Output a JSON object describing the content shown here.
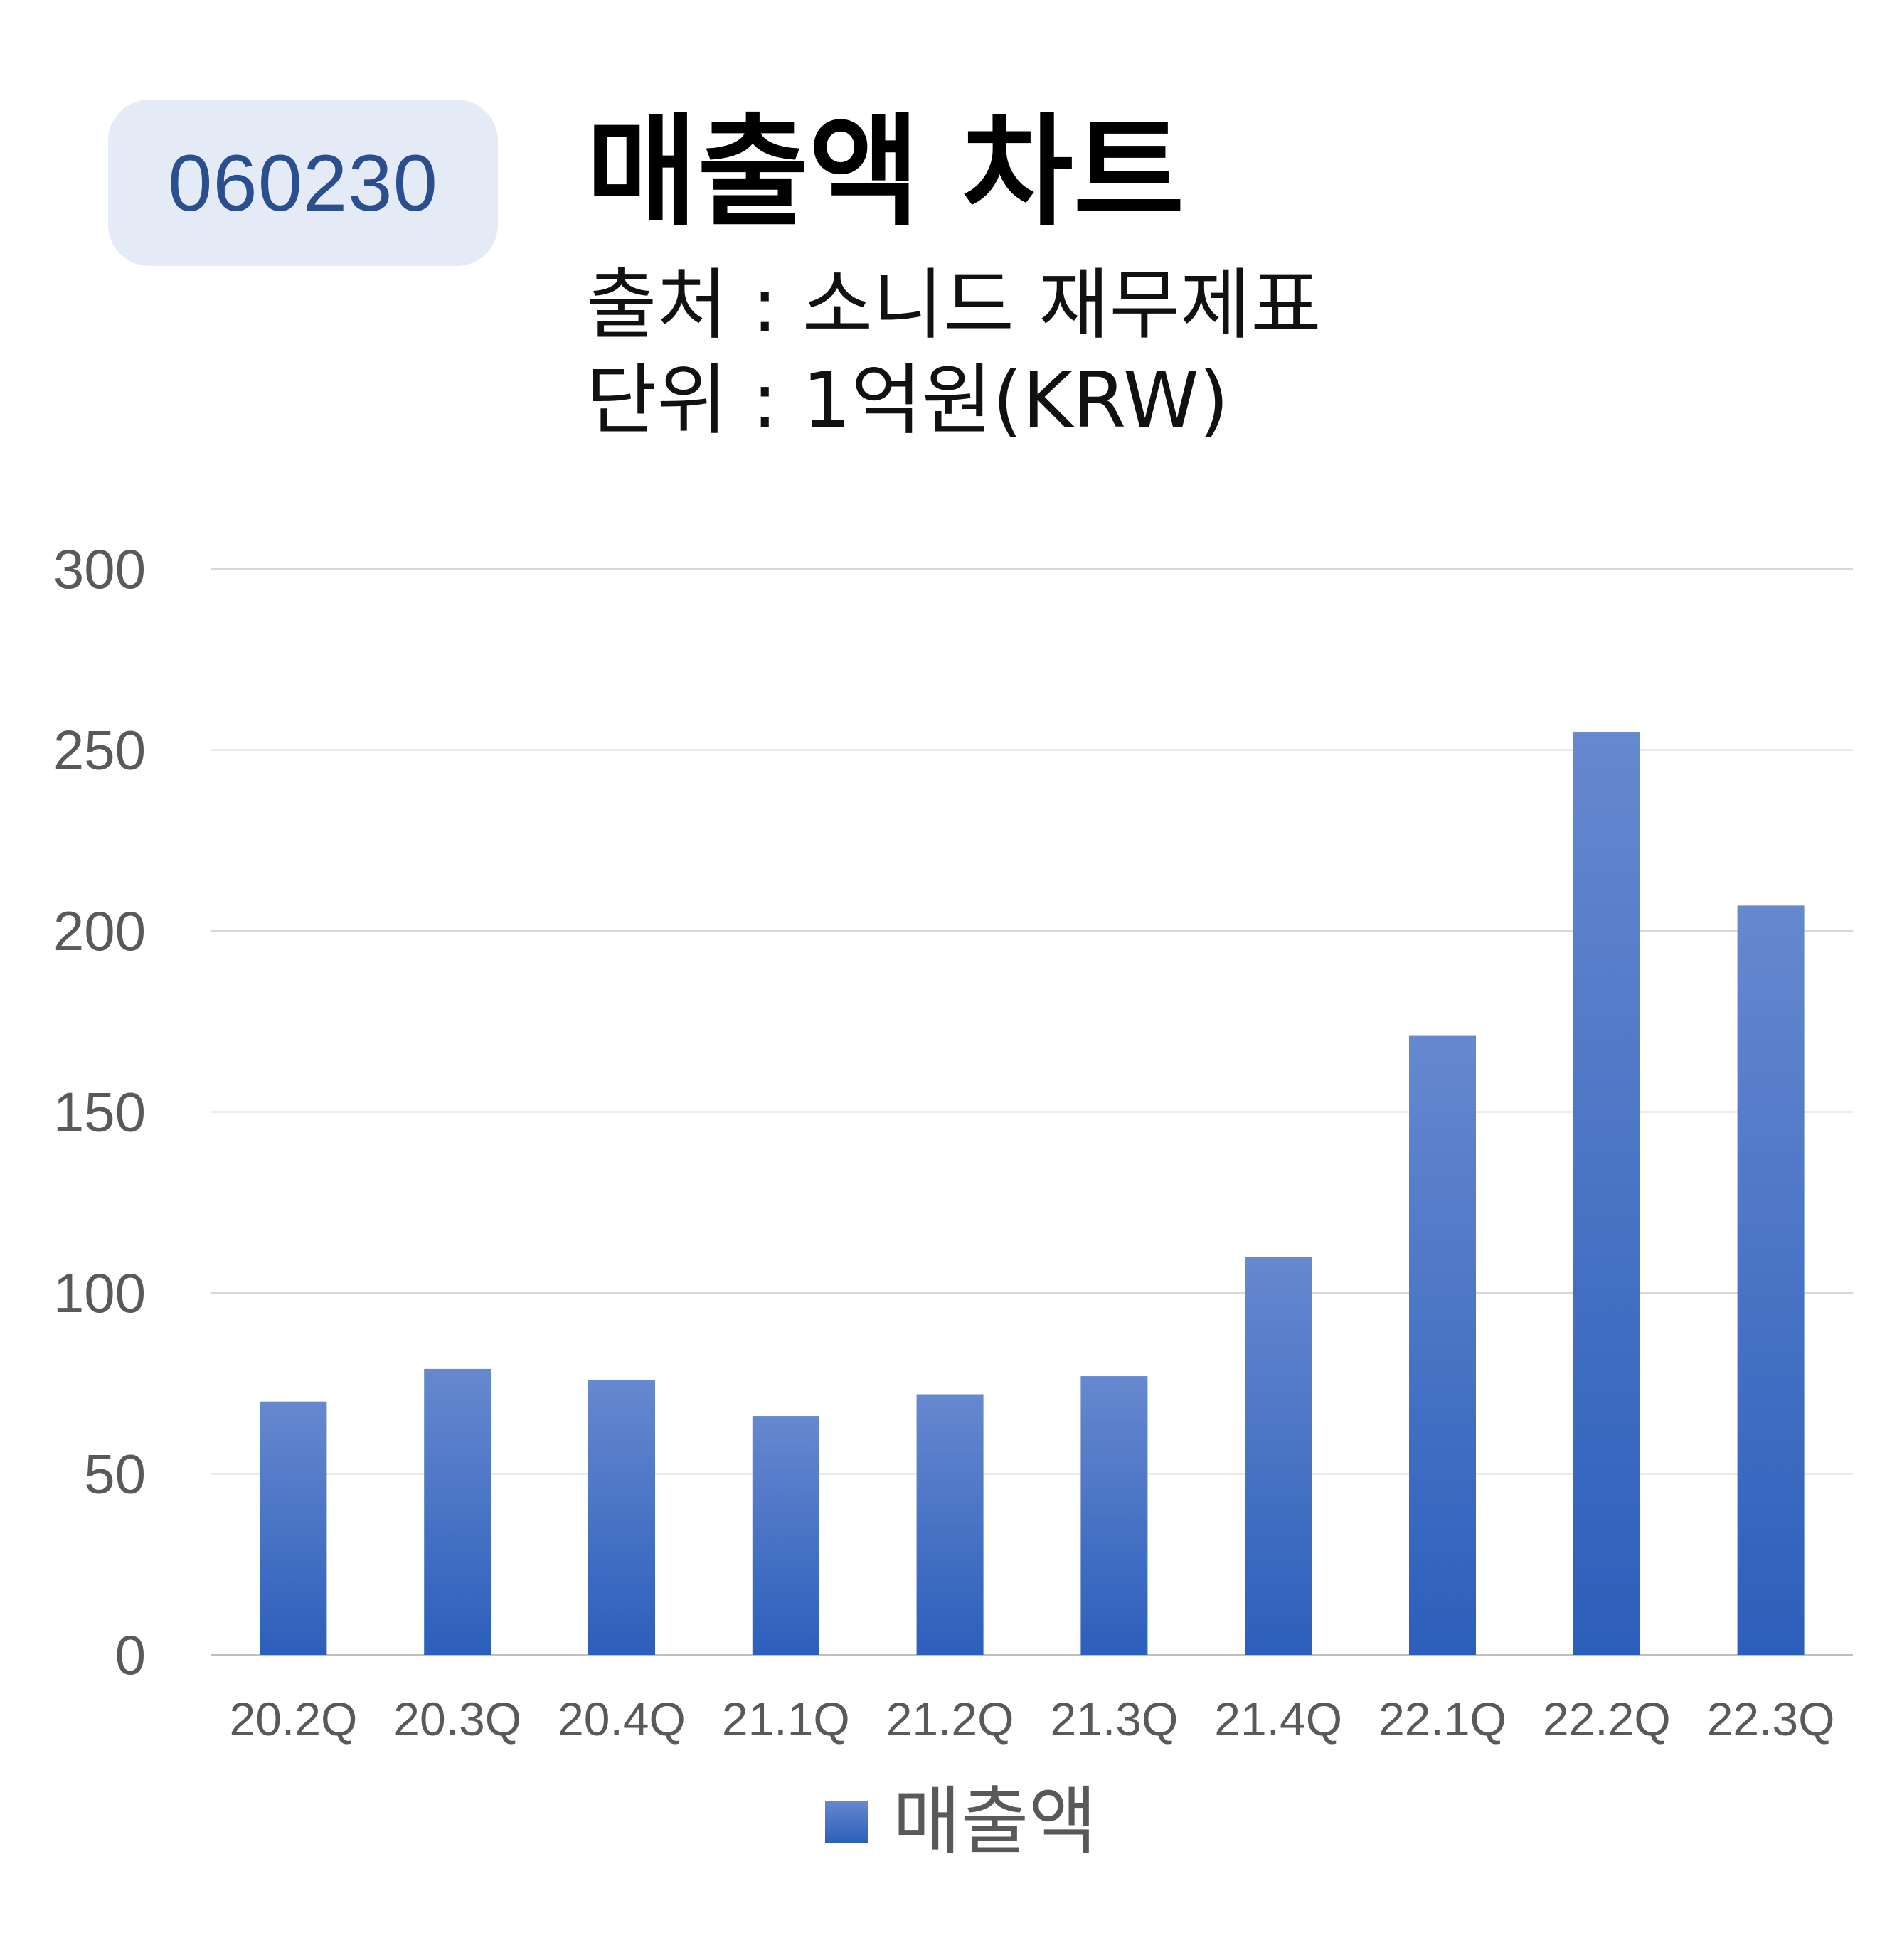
{
  "badge": {
    "code": "060230"
  },
  "header": {
    "title": "매출액 차트",
    "source": "출처 : 소니드 재무제표",
    "unit": "단위 : 1억원(KRW)"
  },
  "colors": {
    "bar_top": "#6688cf",
    "bar_bottom": "#2c5fbb",
    "badge_bg": "#e5ebf6",
    "badge_text": "#2a4f8f",
    "grid": "#d9d9d9",
    "tick_text": "#595959"
  },
  "chart_data": {
    "type": "bar",
    "categories": [
      "20.2Q",
      "20.3Q",
      "20.4Q",
      "21.1Q",
      "21.2Q",
      "21.3Q",
      "21.4Q",
      "22.1Q",
      "22.2Q",
      "22.3Q"
    ],
    "series": [
      {
        "name": "매출액",
        "values": [
          70,
          79,
          76,
          66,
          72,
          77,
          110,
          171,
          255,
          207
        ]
      }
    ],
    "yticks": [
      0,
      50,
      100,
      150,
      200,
      250,
      300
    ],
    "ylim": [
      0,
      300
    ],
    "grid": true,
    "legend_position": "bottom"
  }
}
